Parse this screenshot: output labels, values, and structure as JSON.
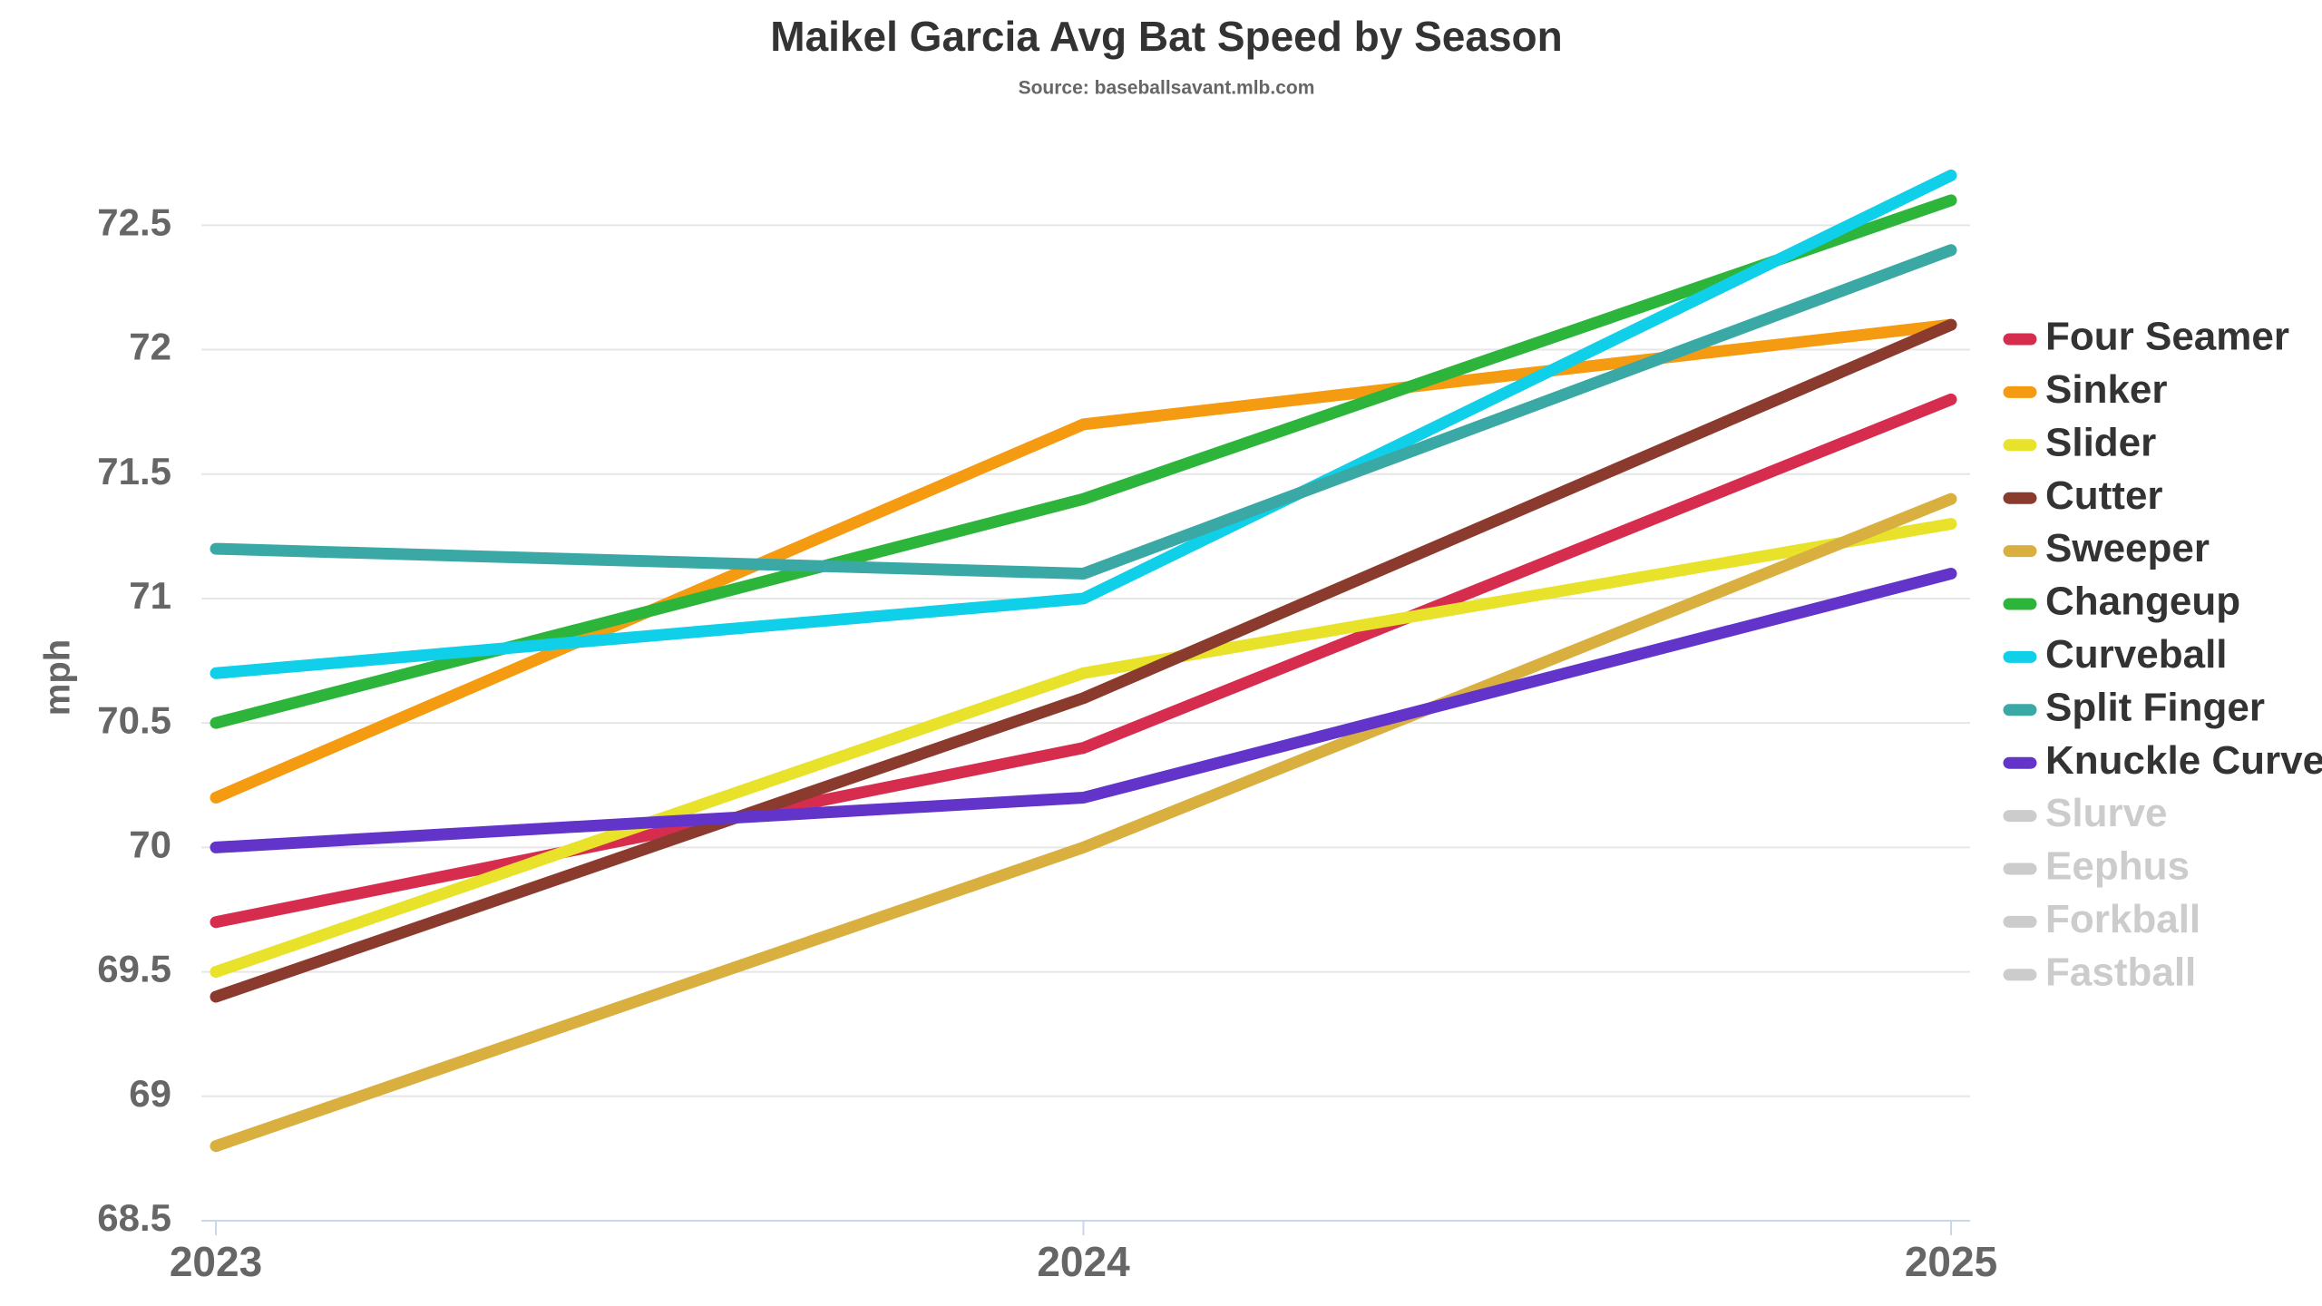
{
  "chart_data": {
    "type": "line",
    "title": "Maikel Garcia Avg Bat Speed by Season",
    "subtitle": "Source: baseballsavant.mlb.com",
    "y_label": "mph",
    "categories": [
      "2023",
      "2024",
      "2025"
    ],
    "ylim": [
      68.5,
      72.8
    ],
    "yticks": [
      68.5,
      69,
      69.5,
      70,
      70.5,
      71,
      71.5,
      72,
      72.5
    ],
    "grid": true,
    "legend": "right",
    "series": [
      {
        "name": "Four Seamer",
        "color": "#d62d4f",
        "values": [
          69.7,
          70.4,
          71.8
        ]
      },
      {
        "name": "Sinker",
        "color": "#f59b12",
        "values": [
          70.2,
          71.7,
          72.1
        ]
      },
      {
        "name": "Slider",
        "color": "#e8e22a",
        "values": [
          69.5,
          70.7,
          71.3
        ]
      },
      {
        "name": "Cutter",
        "color": "#8b3a2e",
        "values": [
          69.4,
          70.6,
          72.1
        ]
      },
      {
        "name": "Sweeper",
        "color": "#d9b040",
        "values": [
          68.8,
          70.0,
          71.4
        ]
      },
      {
        "name": "Changeup",
        "color": "#2cb53a",
        "values": [
          70.5,
          71.4,
          72.6
        ]
      },
      {
        "name": "Curveball",
        "color": "#10cfe8",
        "values": [
          70.7,
          71.0,
          72.7
        ]
      },
      {
        "name": "Split Finger",
        "color": "#3aa9a6",
        "values": [
          71.2,
          71.1,
          72.4
        ]
      },
      {
        "name": "Knuckle Curve",
        "color": "#6234c9",
        "values": [
          70.0,
          70.2,
          71.1
        ]
      },
      {
        "name": "Slurve",
        "color": "#cccccc",
        "hidden": true,
        "values": [
          null,
          null,
          null
        ]
      },
      {
        "name": "Eephus",
        "color": "#cccccc",
        "hidden": true,
        "values": [
          null,
          null,
          null
        ]
      },
      {
        "name": "Forkball",
        "color": "#cccccc",
        "hidden": true,
        "values": [
          null,
          null,
          null
        ]
      },
      {
        "name": "Fastball",
        "color": "#cccccc",
        "hidden": true,
        "values": [
          null,
          null,
          null
        ]
      }
    ]
  }
}
